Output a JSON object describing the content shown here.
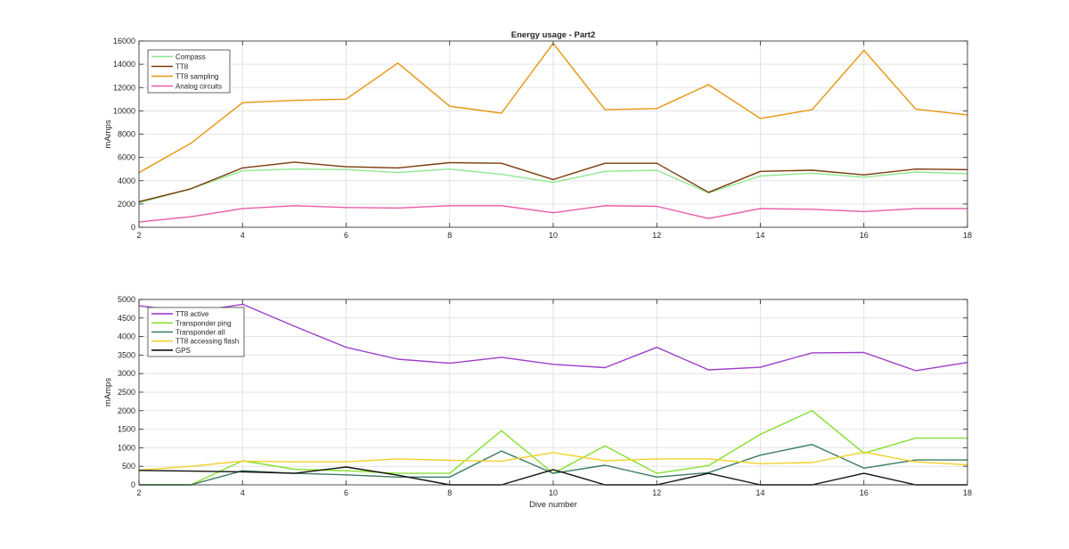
{
  "chart_data": [
    {
      "type": "line",
      "title": "Energy usage - Part2",
      "xlabel": "",
      "ylabel": "mAmps",
      "xlim": [
        2,
        18
      ],
      "ylim": [
        0,
        16000
      ],
      "xticks": [
        2,
        4,
        6,
        8,
        10,
        12,
        14,
        16,
        18
      ],
      "yticks": [
        0,
        2000,
        4000,
        6000,
        8000,
        10000,
        12000,
        14000,
        16000
      ],
      "grid": true,
      "legend_position": "top-left",
      "x": [
        2,
        3,
        4,
        5,
        6,
        7,
        8,
        9,
        10,
        11,
        12,
        13,
        14,
        15,
        16,
        17,
        18
      ],
      "series": [
        {
          "name": "Compass",
          "color": "#8ee88e",
          "values": [
            2100,
            3300,
            4850,
            5000,
            4950,
            4700,
            5000,
            4550,
            3850,
            4800,
            4900,
            2950,
            4400,
            4650,
            4300,
            4750,
            4600
          ]
        },
        {
          "name": "TT8",
          "color": "#7a3a0a",
          "values": [
            2200,
            3300,
            5100,
            5600,
            5200,
            5100,
            5550,
            5500,
            4100,
            5500,
            5500,
            3000,
            4800,
            4900,
            4500,
            5000,
            4950
          ]
        },
        {
          "name": "TT8 sampling",
          "color": "#e8950f",
          "values": [
            4700,
            7200,
            10700,
            10900,
            11000,
            14100,
            10400,
            9800,
            15800,
            10100,
            10200,
            12250,
            9350,
            10100,
            15200,
            10150,
            9650
          ]
        },
        {
          "name": "Analog circuits",
          "color": "#e85aa8",
          "values": [
            450,
            900,
            1600,
            1850,
            1700,
            1650,
            1850,
            1850,
            1250,
            1850,
            1800,
            750,
            1600,
            1550,
            1350,
            1600,
            1600
          ]
        }
      ]
    },
    {
      "type": "line",
      "title": "",
      "xlabel": "Dive number",
      "ylabel": "mAmps",
      "xlim": [
        2,
        18
      ],
      "ylim": [
        0,
        5000
      ],
      "xticks": [
        2,
        4,
        6,
        8,
        10,
        12,
        14,
        16,
        18
      ],
      "yticks": [
        0,
        500,
        1000,
        1500,
        2000,
        2500,
        3000,
        3500,
        4000,
        4500,
        5000
      ],
      "grid": true,
      "legend_position": "top-left",
      "x": [
        2,
        3,
        4,
        5,
        6,
        7,
        8,
        9,
        10,
        11,
        12,
        13,
        14,
        15,
        16,
        17,
        18
      ],
      "series": [
        {
          "name": "TT8 active",
          "color": "#9d3fc8",
          "values": [
            4830,
            4650,
            4870,
            4280,
            3710,
            3390,
            3280,
            3440,
            3250,
            3160,
            3710,
            3100,
            3170,
            3560,
            3570,
            3080,
            3300
          ]
        },
        {
          "name": "Transponder ping",
          "color": "#86e030",
          "values": [
            0,
            0,
            650,
            420,
            380,
            310,
            310,
            1460,
            310,
            1050,
            310,
            520,
            1360,
            2000,
            850,
            1260,
            1260
          ]
        },
        {
          "name": "Transponder all",
          "color": "#3c7a62",
          "values": [
            0,
            0,
            380,
            310,
            270,
            210,
            210,
            910,
            310,
            530,
            210,
            330,
            800,
            1090,
            450,
            670,
            670
          ]
        },
        {
          "name": "TT8 accessing flash",
          "color": "#f2d12a",
          "values": [
            400,
            500,
            640,
            620,
            620,
            700,
            660,
            640,
            870,
            650,
            700,
            700,
            570,
            600,
            880,
            620,
            540
          ]
        },
        {
          "name": "GPS",
          "color": "#111111",
          "values": [
            390,
            370,
            350,
            310,
            480,
            260,
            0,
            0,
            410,
            0,
            0,
            310,
            0,
            0,
            310,
            0,
            0
          ]
        }
      ]
    }
  ]
}
